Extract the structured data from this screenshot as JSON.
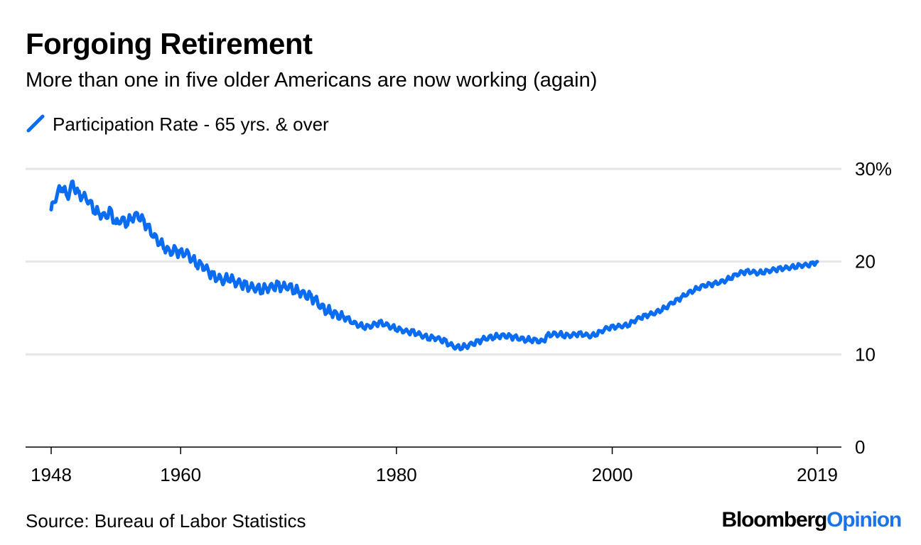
{
  "title": "Forgoing Retirement",
  "subtitle": "More than one in five older Americans are now working (again)",
  "source": "Source: Bureau of Labor Statistics",
  "brand": {
    "part1": "Bloomberg",
    "part2": "Opinion"
  },
  "colors": {
    "series": "#0a6cf0",
    "brand_accent": "#1a73e8",
    "grid": "#e6e6e6",
    "axis": "#000000"
  },
  "chart_data": {
    "type": "line",
    "title": "Forgoing Retirement",
    "subtitle": "More than one in five older Americans are now working (again)",
    "xlabel": "",
    "ylabel": "",
    "xlim": [
      1948,
      2019
    ],
    "ylim": [
      0,
      30
    ],
    "grid": true,
    "legend_position": "top-left",
    "x_ticks": [
      {
        "value": 1948,
        "label": "1948"
      },
      {
        "value": 1960,
        "label": "1960"
      },
      {
        "value": 1980,
        "label": "1980"
      },
      {
        "value": 2000,
        "label": "2000"
      },
      {
        "value": 2019,
        "label": "2019"
      }
    ],
    "y_ticks": [
      {
        "value": 30,
        "label": "30%"
      },
      {
        "value": 20,
        "label": "20"
      },
      {
        "value": 10,
        "label": "10"
      },
      {
        "value": 0,
        "label": "0"
      }
    ],
    "series": [
      {
        "name": "Participation Rate - 65 yrs. & over",
        "x": [
          1948.0,
          1948.5,
          1949.0,
          1949.5,
          1950.0,
          1950.5,
          1951.0,
          1951.5,
          1952.0,
          1952.5,
          1953.0,
          1953.5,
          1954.0,
          1954.5,
          1955.0,
          1955.5,
          1956.0,
          1956.5,
          1957.0,
          1957.5,
          1958.0,
          1958.5,
          1959.0,
          1959.5,
          1960.0,
          1960.5,
          1961.0,
          1961.5,
          1962.0,
          1962.5,
          1963.0,
          1963.5,
          1964.0,
          1964.5,
          1965.0,
          1965.5,
          1966.0,
          1966.5,
          1967.0,
          1967.5,
          1968.0,
          1968.5,
          1969.0,
          1969.5,
          1970.0,
          1970.5,
          1971.0,
          1971.5,
          1972.0,
          1972.5,
          1973.0,
          1973.5,
          1974.0,
          1974.5,
          1975.0,
          1975.5,
          1976.0,
          1976.5,
          1977.0,
          1977.5,
          1978.0,
          1978.5,
          1979.0,
          1979.5,
          1980.0,
          1980.5,
          1981.0,
          1981.5,
          1982.0,
          1982.5,
          1983.0,
          1983.5,
          1984.0,
          1984.5,
          1985.0,
          1985.5,
          1986.0,
          1986.5,
          1987.0,
          1987.5,
          1988.0,
          1988.5,
          1989.0,
          1989.5,
          1990.0,
          1990.5,
          1991.0,
          1991.5,
          1992.0,
          1992.5,
          1993.0,
          1993.5,
          1994.0,
          1994.5,
          1995.0,
          1995.5,
          1996.0,
          1996.5,
          1997.0,
          1997.5,
          1998.0,
          1998.5,
          1999.0,
          1999.5,
          2000.0,
          2000.5,
          2001.0,
          2001.5,
          2002.0,
          2002.5,
          2003.0,
          2003.5,
          2004.0,
          2004.5,
          2005.0,
          2005.5,
          2006.0,
          2006.5,
          2007.0,
          2007.5,
          2008.0,
          2008.5,
          2009.0,
          2009.5,
          2010.0,
          2010.5,
          2011.0,
          2011.5,
          2012.0,
          2012.5,
          2013.0,
          2013.5,
          2014.0,
          2014.5,
          2015.0,
          2015.5,
          2016.0,
          2016.5,
          2017.0,
          2017.5,
          2018.0,
          2018.5,
          2019.0
        ],
        "y": [
          25.6,
          27.2,
          28.2,
          27.0,
          28.4,
          27.2,
          27.0,
          26.6,
          25.6,
          25.2,
          24.8,
          25.4,
          24.0,
          24.6,
          24.2,
          24.8,
          25.0,
          24.4,
          23.6,
          22.8,
          22.2,
          21.6,
          21.0,
          21.2,
          20.8,
          21.0,
          20.4,
          19.8,
          19.6,
          19.0,
          18.4,
          18.2,
          18.0,
          18.4,
          17.8,
          17.6,
          17.4,
          17.2,
          17.2,
          17.0,
          17.2,
          17.2,
          17.4,
          17.2,
          17.4,
          17.0,
          16.8,
          16.4,
          16.2,
          15.8,
          15.2,
          14.8,
          14.6,
          14.2,
          14.0,
          13.8,
          13.4,
          13.2,
          13.0,
          13.0,
          13.2,
          13.4,
          13.2,
          13.0,
          12.8,
          12.6,
          12.4,
          12.4,
          12.2,
          12.0,
          11.8,
          11.8,
          11.6,
          11.4,
          11.0,
          10.8,
          10.8,
          10.9,
          11.1,
          11.3,
          11.6,
          11.8,
          11.9,
          12.0,
          12.0,
          11.9,
          11.8,
          11.7,
          11.6,
          11.6,
          11.5,
          11.3,
          12.0,
          12.2,
          12.2,
          12.1,
          12.0,
          12.1,
          12.2,
          12.1,
          12.0,
          12.2,
          12.5,
          12.8,
          12.9,
          13.0,
          13.1,
          13.2,
          13.6,
          13.9,
          14.1,
          14.3,
          14.5,
          14.8,
          15.1,
          15.5,
          15.8,
          16.2,
          16.6,
          16.9,
          17.2,
          17.4,
          17.5,
          17.6,
          17.8,
          18.0,
          18.3,
          18.6,
          18.8,
          18.9,
          18.9,
          18.8,
          18.9,
          19.0,
          19.1,
          19.2,
          19.3,
          19.4,
          19.5,
          19.6,
          19.6,
          19.7,
          20.0
        ]
      }
    ]
  }
}
